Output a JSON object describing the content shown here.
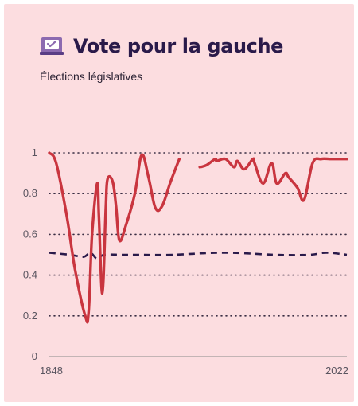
{
  "header": {
    "title": "Vote pour la gauche",
    "subtitle": "Élections législatives",
    "icon": "ballot-box-icon"
  },
  "colors": {
    "background": "#fcdde0",
    "series_solid": "#c9353f",
    "series_dashed": "#2a1a4a",
    "title": "#2a1a4a"
  },
  "chart_data": {
    "type": "line",
    "title": "Vote pour la gauche",
    "subtitle": "Élections législatives",
    "xlabel": "",
    "ylabel": "",
    "xlim": [
      1848,
      2022
    ],
    "ylim": [
      0,
      1
    ],
    "x_tick_labels": [
      "1848",
      "2022"
    ],
    "y_tick_labels": [
      "0",
      "0.2",
      "0.4",
      "0.6",
      "0.8",
      "1"
    ],
    "grid": "horizontal-dotted",
    "legend": "none",
    "series": [
      {
        "style": "solid",
        "color": "#c9353f",
        "segments": [
          [
            [
              1848,
              1.0
            ],
            [
              1852,
              0.95
            ],
            [
              1858,
              0.7
            ],
            [
              1863,
              0.43
            ],
            [
              1869,
              0.2
            ],
            [
              1871,
              0.22
            ],
            [
              1873,
              0.6
            ],
            [
              1876,
              0.85
            ],
            [
              1877,
              0.69
            ],
            [
              1879,
              0.31
            ],
            [
              1881,
              0.72
            ],
            [
              1882,
              0.87
            ],
            [
              1885,
              0.86
            ],
            [
              1887,
              0.74
            ],
            [
              1889,
              0.57
            ],
            [
              1893,
              0.65
            ],
            [
              1898,
              0.8
            ],
            [
              1902,
              0.99
            ],
            [
              1906,
              0.88
            ],
            [
              1910,
              0.73
            ],
            [
              1914,
              0.74
            ],
            [
              1919,
              0.86
            ],
            [
              1924,
              0.97
            ]
          ],
          [
            [
              1936,
              0.93
            ],
            [
              1940,
              0.94
            ],
            [
              1945,
              0.97
            ],
            [
              1946,
              0.96
            ],
            [
              1951,
              0.97
            ],
            [
              1956,
              0.93
            ],
            [
              1958,
              0.96
            ],
            [
              1962,
              0.92
            ],
            [
              1967,
              0.97
            ],
            [
              1968,
              0.95
            ],
            [
              1973,
              0.85
            ],
            [
              1978,
              0.95
            ],
            [
              1981,
              0.85
            ],
            [
              1986,
              0.9
            ],
            [
              1988,
              0.88
            ],
            [
              1993,
              0.83
            ],
            [
              1997,
              0.77
            ],
            [
              2002,
              0.95
            ],
            [
              2007,
              0.97
            ],
            [
              2012,
              0.97
            ],
            [
              2017,
              0.97
            ],
            [
              2022,
              0.97
            ]
          ]
        ]
      },
      {
        "style": "dashed",
        "color": "#2a1a4a",
        "segments": [
          [
            [
              1848,
              0.51
            ],
            [
              1860,
              0.5
            ],
            [
              1868,
              0.49
            ],
            [
              1872,
              0.51
            ],
            [
              1876,
              0.48
            ],
            [
              1880,
              0.5
            ],
            [
              1890,
              0.5
            ],
            [
              1900,
              0.5
            ],
            [
              1920,
              0.5
            ],
            [
              1950,
              0.51
            ],
            [
              1980,
              0.5
            ],
            [
              2000,
              0.5
            ],
            [
              2010,
              0.51
            ],
            [
              2022,
              0.5
            ]
          ]
        ]
      }
    ]
  }
}
